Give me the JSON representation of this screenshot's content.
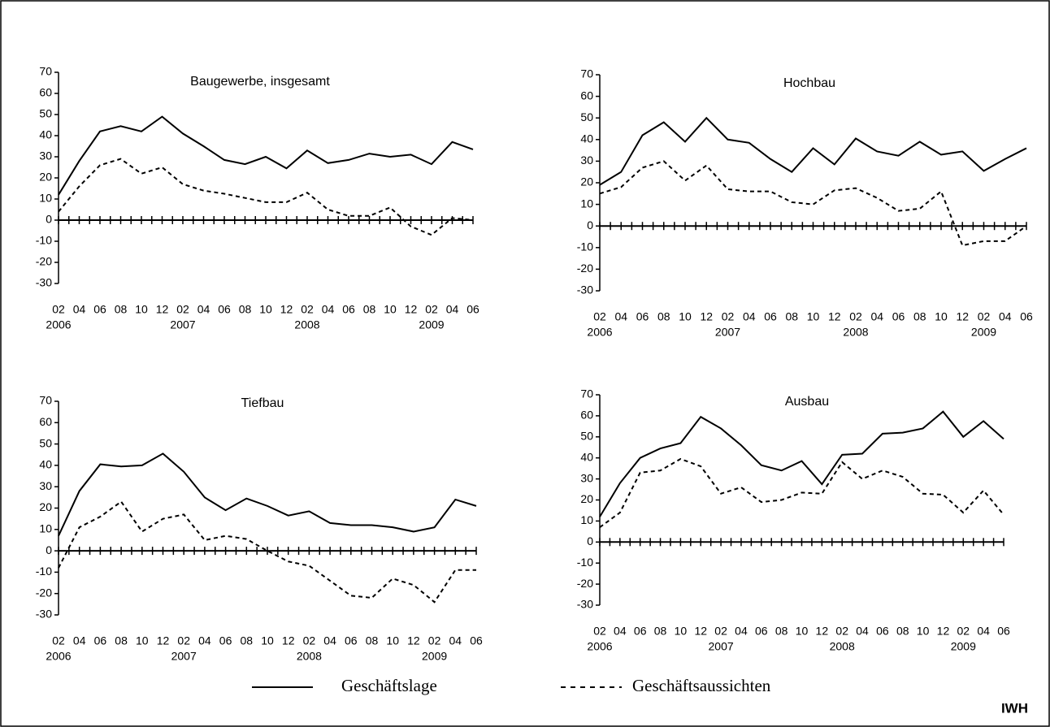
{
  "chart_data": [
    {
      "type": "line",
      "title": "Baugewerbe, insgesamt",
      "categories": [
        "02",
        "04",
        "06",
        "08",
        "10",
        "12",
        "02",
        "04",
        "06",
        "08",
        "10",
        "12",
        "02",
        "04",
        "06",
        "08",
        "10",
        "12",
        "02",
        "04",
        "06"
      ],
      "years": [
        "2006",
        null,
        null,
        null,
        null,
        null,
        "2007",
        null,
        null,
        null,
        null,
        null,
        "2008",
        null,
        null,
        null,
        null,
        null,
        "2009",
        null,
        null
      ],
      "ylim": [
        -30,
        70
      ],
      "yticks": [
        -30,
        -20,
        -10,
        0,
        10,
        20,
        30,
        40,
        50,
        60,
        70
      ],
      "series": [
        {
          "name": "Geschäftslage",
          "color": "#000000",
          "dash": false,
          "values": [
            12,
            28,
            42,
            44.5,
            42,
            49,
            41,
            35,
            28.5,
            26.5,
            30,
            24.5,
            33,
            27,
            28.5,
            31.5,
            30,
            31,
            26.5,
            37,
            33.5
          ]
        },
        {
          "name": "Geschäftsaussichten",
          "color": "#000000",
          "dash": true,
          "values": [
            4,
            16,
            26,
            29,
            22,
            25,
            17,
            14,
            12.5,
            10.5,
            8.5,
            8.5,
            13,
            5,
            2,
            2,
            6,
            -3,
            -7,
            1,
            0
          ]
        }
      ]
    },
    {
      "type": "line",
      "title": "Hochbau",
      "categories": [
        "02",
        "04",
        "06",
        "08",
        "10",
        "12",
        "02",
        "04",
        "06",
        "08",
        "10",
        "12",
        "02",
        "04",
        "06",
        "08",
        "10",
        "12",
        "02",
        "04",
        "06"
      ],
      "years": [
        "2006",
        null,
        null,
        null,
        null,
        null,
        "2007",
        null,
        null,
        null,
        null,
        null,
        "2008",
        null,
        null,
        null,
        null,
        null,
        "2009",
        null,
        null
      ],
      "ylim": [
        -30,
        70
      ],
      "yticks": [
        -30,
        -20,
        -10,
        0,
        10,
        20,
        30,
        40,
        50,
        60,
        70
      ],
      "series": [
        {
          "name": "Geschäftslage",
          "color": "#000000",
          "dash": false,
          "values": [
            19,
            25,
            42,
            48,
            39,
            50,
            40,
            38.5,
            31,
            25,
            36,
            28.5,
            40.5,
            34.5,
            32.5,
            39,
            33,
            34.5,
            25.5,
            31,
            36
          ]
        },
        {
          "name": "Geschäftsaussichten",
          "color": "#000000",
          "dash": true,
          "values": [
            15,
            18,
            27,
            30,
            21,
            28,
            17,
            16,
            16,
            11,
            10,
            16.5,
            17.5,
            13,
            7,
            8,
            16,
            -9,
            -7,
            -7,
            0
          ]
        }
      ]
    },
    {
      "type": "line",
      "title": "Tiefbau",
      "categories": [
        "02",
        "04",
        "06",
        "08",
        "10",
        "12",
        "02",
        "04",
        "06",
        "08",
        "10",
        "12",
        "02",
        "04",
        "06",
        "08",
        "10",
        "12",
        "02",
        "04",
        "06"
      ],
      "years": [
        "2006",
        null,
        null,
        null,
        null,
        null,
        "2007",
        null,
        null,
        null,
        null,
        null,
        "2008",
        null,
        null,
        null,
        null,
        null,
        "2009",
        null,
        null
      ],
      "ylim": [
        -30,
        70
      ],
      "yticks": [
        -30,
        -20,
        -10,
        0,
        10,
        20,
        30,
        40,
        50,
        60,
        70
      ],
      "series": [
        {
          "name": "Geschäftslage",
          "color": "#000000",
          "dash": false,
          "values": [
            7,
            28,
            40.5,
            39.5,
            40,
            45.5,
            37,
            25,
            19,
            24.5,
            21,
            16.5,
            18.5,
            13,
            12,
            12,
            11,
            9,
            11,
            24,
            21
          ]
        },
        {
          "name": "Geschäftsaussichten",
          "color": "#000000",
          "dash": true,
          "values": [
            -8,
            11,
            16,
            23,
            9,
            15,
            17,
            5,
            7,
            5.5,
            0,
            -5,
            -7,
            -14,
            -21,
            -22,
            -13,
            -16,
            -24,
            -9,
            -9
          ]
        }
      ]
    },
    {
      "type": "line",
      "title": "Ausbau",
      "categories": [
        "02",
        "04",
        "06",
        "08",
        "10",
        "12",
        "02",
        "04",
        "06",
        "08",
        "10",
        "12",
        "02",
        "04",
        "06",
        "08",
        "10",
        "12",
        "02",
        "04",
        "06"
      ],
      "years": [
        "2006",
        null,
        null,
        null,
        null,
        null,
        "2007",
        null,
        null,
        null,
        null,
        null,
        "2008",
        null,
        null,
        null,
        null,
        null,
        "2009",
        null,
        null
      ],
      "ylim": [
        -30,
        70
      ],
      "yticks": [
        -30,
        -20,
        -10,
        0,
        10,
        20,
        30,
        40,
        50,
        60,
        70
      ],
      "series": [
        {
          "name": "Geschäftslage",
          "color": "#000000",
          "dash": false,
          "values": [
            12,
            28,
            40,
            44.5,
            47,
            59.5,
            54,
            46,
            36.5,
            34,
            38.5,
            27.5,
            41.5,
            42,
            51.5,
            52,
            54,
            62,
            50,
            57.5,
            49
          ]
        },
        {
          "name": "Geschäftsaussichten",
          "color": "#000000",
          "dash": true,
          "values": [
            7,
            14,
            33,
            34,
            39.5,
            36,
            23,
            26,
            19,
            20,
            23.5,
            23,
            38,
            30,
            34,
            31,
            23,
            22.5,
            14,
            24.5,
            13
          ]
        }
      ]
    }
  ],
  "source": "IWH"
}
